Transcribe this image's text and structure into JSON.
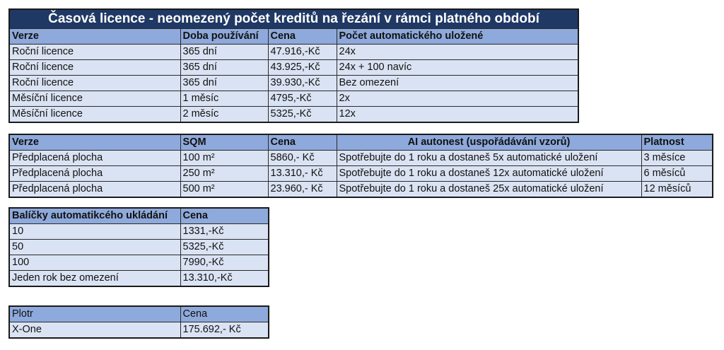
{
  "licence_table": {
    "title": "Časová licence - neomezený počet kreditů na řezání v rámci platného období",
    "headers": [
      "Verze",
      "Doba používání",
      "Cena",
      "Počet automatického uložené"
    ],
    "rows": [
      [
        "Roční licence",
        "365 dní",
        "47.916,-Kč",
        "24x"
      ],
      [
        "Roční licence",
        "365 dní",
        "43.925,-Kč",
        "24x + 100 navíc"
      ],
      [
        "Roční licence",
        "365 dní",
        "39.930,-Kč",
        "Bez omezení"
      ],
      [
        "Měsíční licence",
        "1 měsíc",
        "4795,-Kč",
        "2x"
      ],
      [
        "Měsíční licence",
        "2 měsíc",
        "5325,-Kč",
        "12x"
      ]
    ]
  },
  "area_table": {
    "headers": [
      "Verze",
      "SQM",
      "Cena",
      "AI autonest  (uspořádávání vzorů)",
      "Platnost"
    ],
    "rows": [
      [
        "Předplacená plocha",
        "100 m²",
        "5860,- Kč",
        "Spotřebujte do 1 roku a dostaneš 5x automatické uložení",
        "3 měsíce"
      ],
      [
        "Předplacená plocha",
        "250 m²",
        "13.310,- Kč",
        "Spotřebujte do 1 roku a dostaneš 12x automatické uložení",
        "6 měsíců"
      ],
      [
        "Předplacená plocha",
        "500 m²",
        "23.960,- Kč",
        "Spotřebujte do 1 roku a dostaneš 25x automatické uložení",
        "12 měsíců"
      ]
    ]
  },
  "autosave_table": {
    "headers": [
      "Balíčky automatikcého ukládání",
      "Cena"
    ],
    "rows": [
      [
        "10",
        "1331,-Kč"
      ],
      [
        "50",
        "5325,-Kč"
      ],
      [
        "100",
        "7990,-Kč"
      ],
      [
        "Jeden rok bez omezení",
        "13.310,-Kč"
      ]
    ]
  },
  "plotter_table": {
    "headers": [
      "Plotr",
      "Cena"
    ],
    "rows": [
      [
        "X-One",
        "175.692,- Kč"
      ]
    ]
  },
  "colors": {
    "title_bg": "#1f3864",
    "header_bg": "#8ea9db",
    "row_bg": "#dae3f3"
  }
}
